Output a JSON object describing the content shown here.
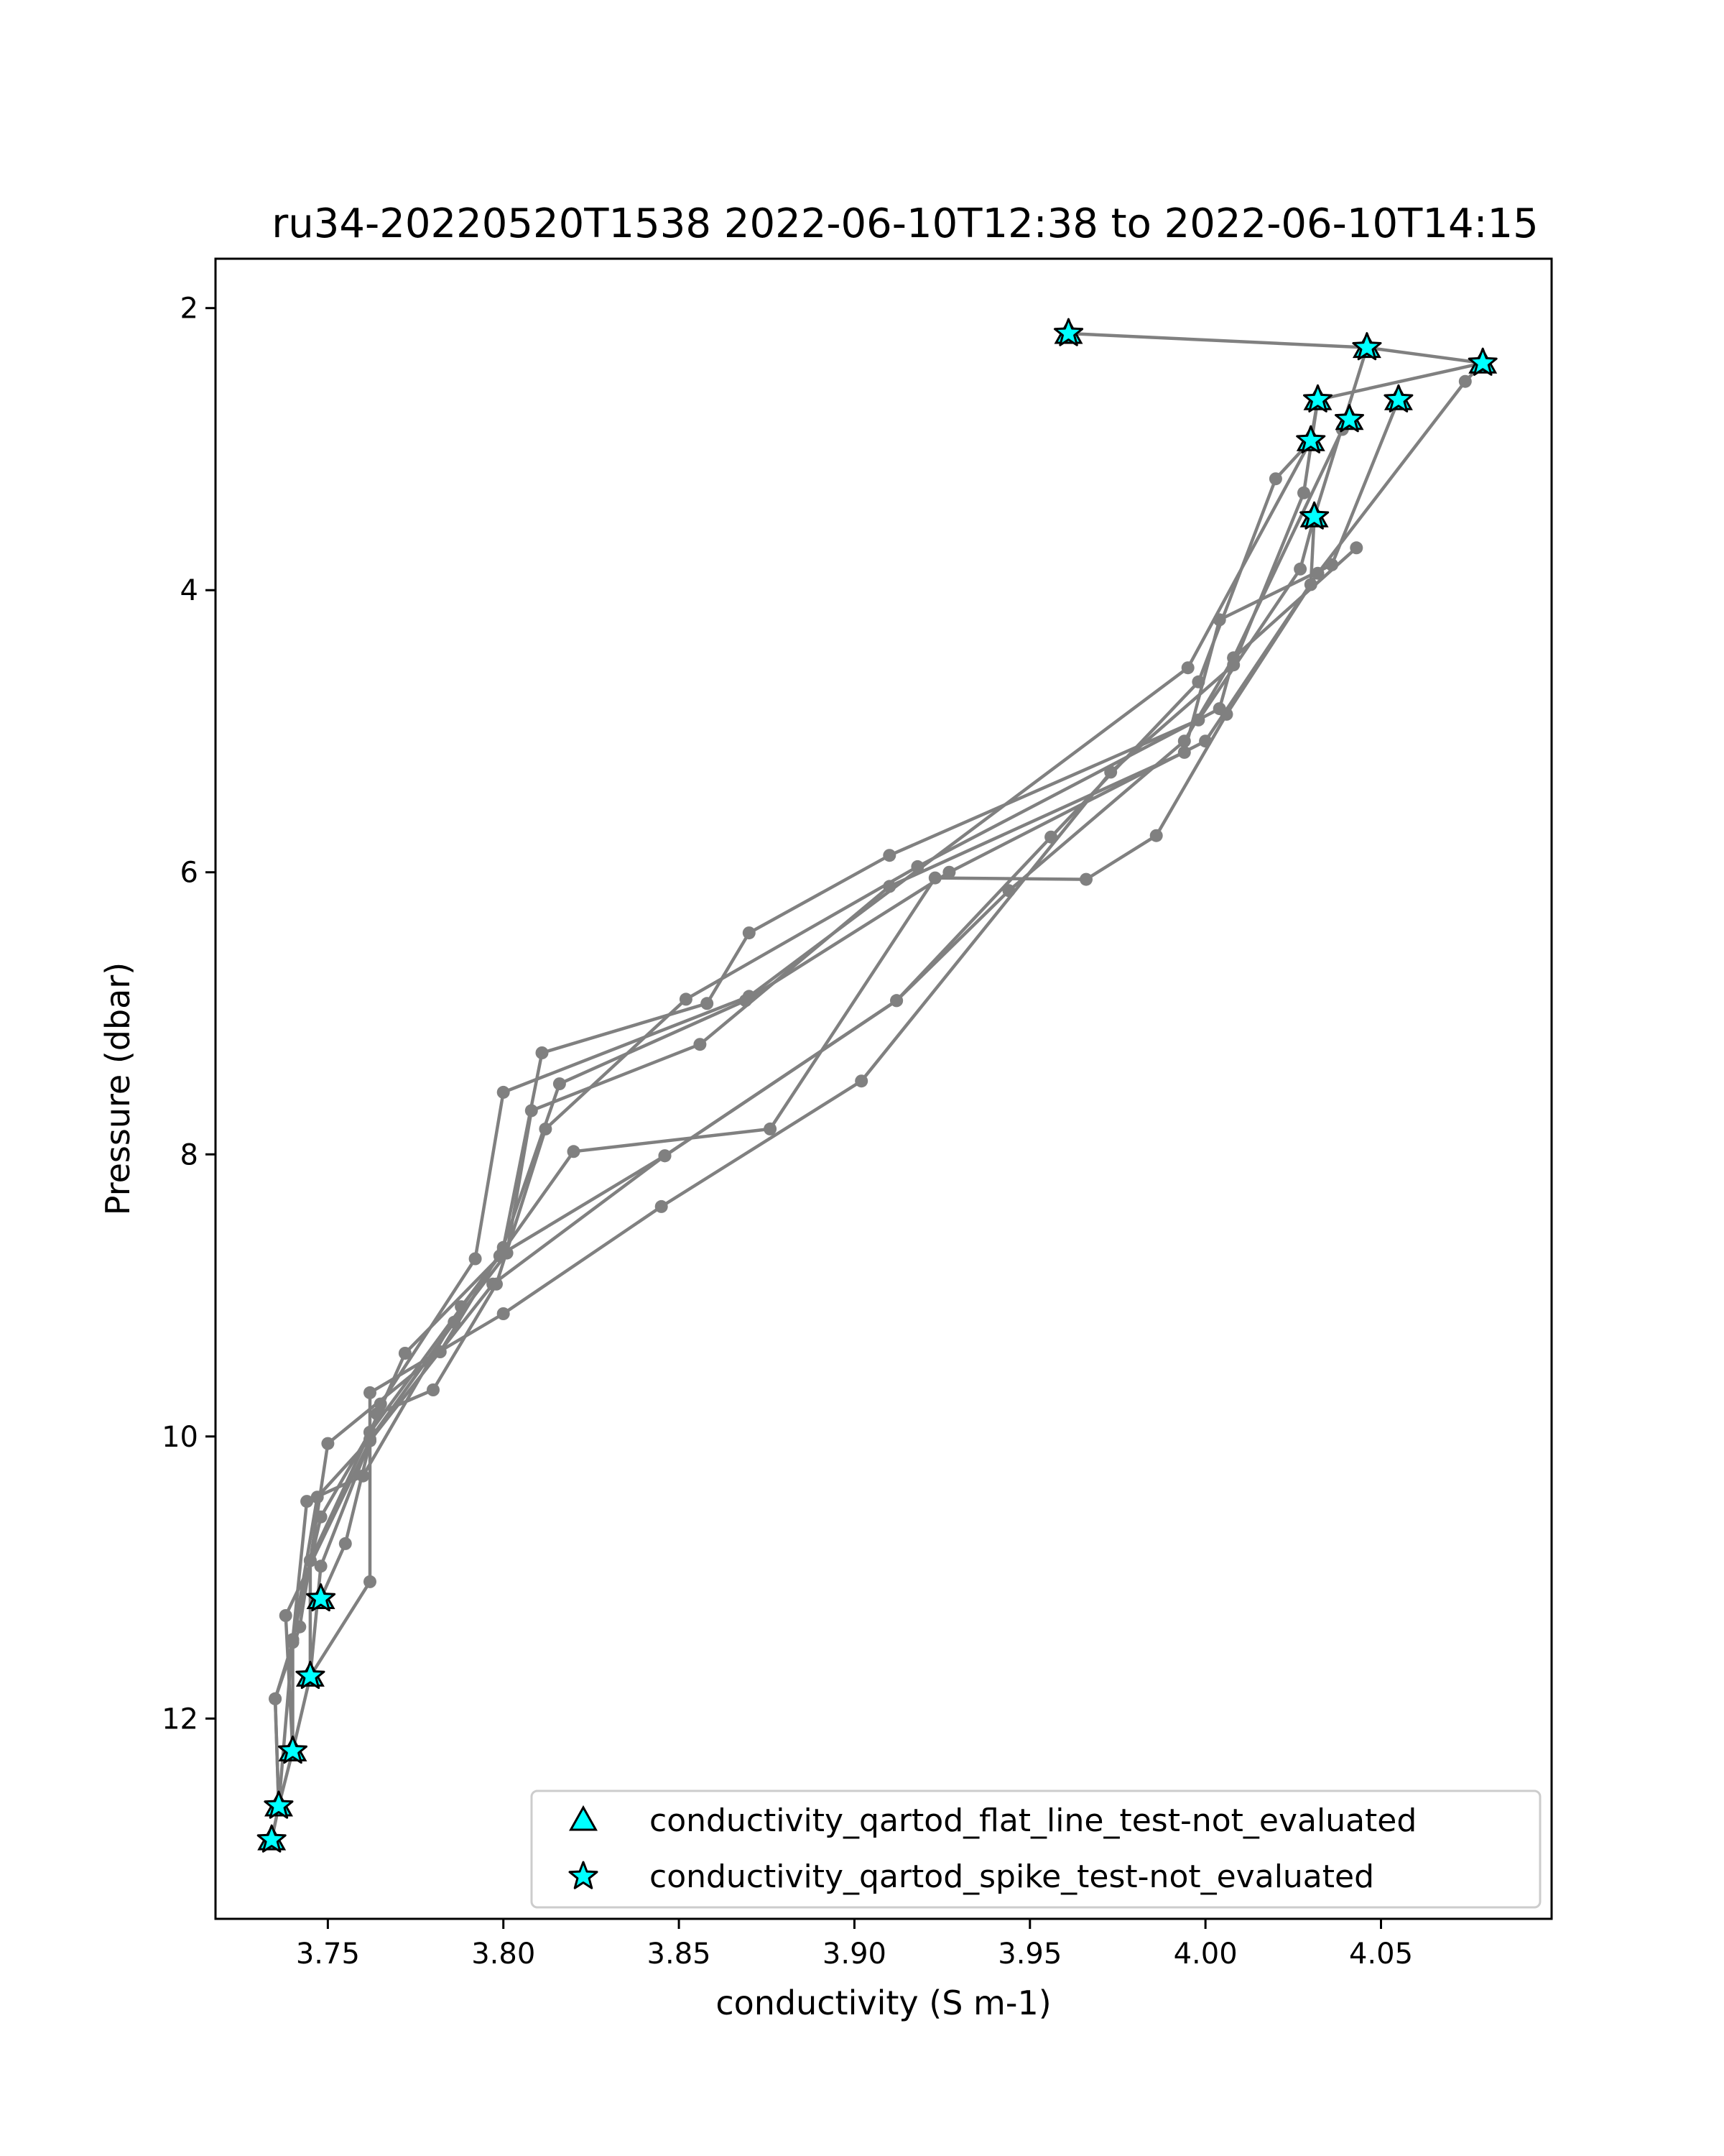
{
  "chart_data": {
    "type": "line",
    "title": "ru34-20220520T1538 2022-06-10T12:38 to 2022-06-10T14:15",
    "xlabel": "conductivity (S m-1)",
    "ylabel": "Pressure (dbar)",
    "xlim": [
      3.718,
      4.0986
    ],
    "ylim": [
      13.42,
      1.65
    ],
    "y_inverted": true,
    "grid": false,
    "xticks": [
      3.75,
      3.8,
      3.85,
      3.9,
      3.95,
      4.0,
      4.05
    ],
    "xtick_labels": [
      "3.75",
      "3.80",
      "3.85",
      "3.90",
      "3.95",
      "4.00",
      "4.05"
    ],
    "yticks": [
      2,
      4,
      6,
      8,
      10,
      12
    ],
    "ytick_labels": [
      "2",
      "4",
      "6",
      "8",
      "10",
      "12"
    ],
    "legend_position": "lower right",
    "colors": {
      "line": "#808080",
      "marker": "#00ffff",
      "marker_edge": "#000000"
    },
    "series": [
      {
        "label_visible": false,
        "points": [
          [
            3.961,
            2.18
          ],
          [
            4.046,
            2.28
          ],
          [
            4.079,
            2.39
          ],
          [
            4.032,
            2.65
          ],
          [
            4.03,
            2.94
          ],
          [
            3.995,
            4.55
          ],
          [
            3.87,
            6.88
          ],
          [
            3.8,
            7.56
          ],
          [
            3.792,
            8.74
          ],
          [
            3.765,
            9.77
          ],
          [
            3.762,
            10.03
          ],
          [
            3.748,
            10.92
          ],
          [
            3.745,
            11.7
          ],
          [
            3.74,
            12.23
          ],
          [
            3.736,
            12.62
          ],
          [
            3.734,
            12.86
          ]
        ]
      },
      {
        "label_visible": false,
        "points": [
          [
            4.046,
            2.28
          ],
          [
            4.031,
            3.48
          ],
          [
            4.027,
            3.85
          ],
          [
            3.998,
            4.92
          ],
          [
            3.91,
            5.88
          ],
          [
            3.87,
            6.43
          ],
          [
            3.858,
            6.93
          ],
          [
            3.811,
            7.28
          ],
          [
            3.8,
            8.66
          ],
          [
            3.782,
            9.4
          ],
          [
            3.75,
            10.05
          ],
          [
            3.745,
            10.88
          ],
          [
            3.745,
            11.7
          ]
        ]
      },
      {
        "label_visible": false,
        "points": [
          [
            4.079,
            2.39
          ],
          [
            4.074,
            2.52
          ],
          [
            4.032,
            3.88
          ],
          [
            4.0,
            5.07
          ],
          [
            3.927,
            6.0
          ],
          [
            3.869,
            6.91
          ],
          [
            3.816,
            7.5
          ],
          [
            3.799,
            8.72
          ],
          [
            3.788,
            9.08
          ],
          [
            3.76,
            10.28
          ],
          [
            3.744,
            10.46
          ],
          [
            3.74,
            11.44
          ],
          [
            3.74,
            12.23
          ]
        ]
      },
      {
        "label_visible": false,
        "points": [
          [
            4.055,
            2.65
          ],
          [
            4.036,
            3.82
          ],
          [
            4.004,
            4.21
          ],
          [
            3.994,
            5.15
          ],
          [
            3.91,
            6.1
          ],
          [
            3.856,
            7.22
          ],
          [
            3.808,
            7.69
          ],
          [
            3.801,
            8.7
          ],
          [
            3.786,
            9.19
          ],
          [
            3.762,
            10.02
          ],
          [
            3.747,
            10.43
          ],
          [
            3.74,
            11.46
          ],
          [
            3.735,
            11.86
          ],
          [
            3.736,
            12.62
          ]
        ]
      },
      {
        "label_visible": false,
        "points": [
          [
            4.041,
            2.79
          ],
          [
            4.039,
            2.86
          ],
          [
            4.008,
            4.48
          ],
          [
            4.004,
            4.84
          ],
          [
            3.918,
            5.96
          ],
          [
            3.852,
            6.9
          ],
          [
            3.812,
            7.82
          ],
          [
            3.798,
            8.92
          ],
          [
            3.78,
            9.67
          ],
          [
            3.764,
            9.84
          ],
          [
            3.755,
            10.76
          ],
          [
            3.748,
            11.15
          ]
        ]
      },
      {
        "label_visible": false,
        "points": [
          [
            4.032,
            2.65
          ],
          [
            4.028,
            3.31
          ],
          [
            4.008,
            4.53
          ],
          [
            3.973,
            5.29
          ],
          [
            3.902,
            7.48
          ],
          [
            3.845,
            8.37
          ],
          [
            3.8,
            9.13
          ],
          [
            3.762,
            9.69
          ],
          [
            3.762,
            11.03
          ],
          [
            3.745,
            11.7
          ]
        ]
      },
      {
        "label_visible": false,
        "points": [
          [
            4.03,
            2.94
          ],
          [
            4.02,
            3.21
          ],
          [
            3.998,
            4.65
          ],
          [
            3.956,
            5.75
          ],
          [
            3.912,
            6.91
          ],
          [
            3.846,
            8.01
          ],
          [
            3.797,
            8.92
          ],
          [
            3.762,
            10.03
          ],
          [
            3.738,
            11.27
          ],
          [
            3.74,
            12.23
          ]
        ]
      },
      {
        "label_visible": false,
        "points": [
          [
            4.031,
            3.48
          ],
          [
            4.03,
            3.96
          ],
          [
            4.006,
            4.88
          ],
          [
            3.986,
            5.74
          ],
          [
            3.966,
            6.05
          ],
          [
            3.923,
            6.04
          ],
          [
            3.876,
            7.82
          ],
          [
            3.82,
            7.98
          ],
          [
            3.8,
            8.68
          ],
          [
            3.762,
            9.97
          ],
          [
            3.745,
            10.88
          ],
          [
            3.742,
            11.35
          ],
          [
            3.735,
            11.86
          ],
          [
            3.736,
            12.62
          ]
        ]
      },
      {
        "label_visible": false,
        "points": [
          [
            4.043,
            3.7
          ],
          [
            4.008,
            4.48
          ],
          [
            3.994,
            5.07
          ],
          [
            3.944,
            6.13
          ],
          [
            3.912,
            6.91
          ],
          [
            3.846,
            8.01
          ],
          [
            3.8,
            8.7
          ],
          [
            3.772,
            9.41
          ],
          [
            3.762,
            9.97
          ],
          [
            3.748,
            10.57
          ],
          [
            3.74,
            11.44
          ],
          [
            3.736,
            12.62
          ]
        ]
      }
    ],
    "flagged_points": {
      "conductivity_qartod_spike_test-not_evaluated": [
        [
          3.961,
          2.18
        ],
        [
          4.046,
          2.28
        ],
        [
          4.079,
          2.39
        ],
        [
          4.032,
          2.65
        ],
        [
          4.055,
          2.65
        ],
        [
          4.041,
          2.79
        ],
        [
          4.03,
          2.94
        ],
        [
          4.031,
          3.48
        ],
        [
          3.748,
          11.15
        ],
        [
          3.745,
          11.7
        ],
        [
          3.74,
          12.23
        ],
        [
          3.736,
          12.62
        ],
        [
          3.734,
          12.86
        ]
      ],
      "conductivity_qartod_flat_line_test-not_evaluated": [
        [
          3.961,
          2.18
        ],
        [
          4.046,
          2.28
        ],
        [
          4.079,
          2.39
        ],
        [
          4.032,
          2.65
        ],
        [
          4.055,
          2.65
        ],
        [
          4.041,
          2.79
        ],
        [
          4.03,
          2.94
        ],
        [
          4.031,
          3.48
        ],
        [
          3.748,
          11.15
        ],
        [
          3.745,
          11.7
        ],
        [
          3.74,
          12.23
        ],
        [
          3.736,
          12.62
        ],
        [
          3.734,
          12.86
        ]
      ]
    },
    "legend": [
      {
        "name": "conductivity_qartod_flat_line_test-not_evaluated",
        "marker": "triangle"
      },
      {
        "name": "conductivity_qartod_spike_test-not_evaluated",
        "marker": "star"
      }
    ]
  }
}
